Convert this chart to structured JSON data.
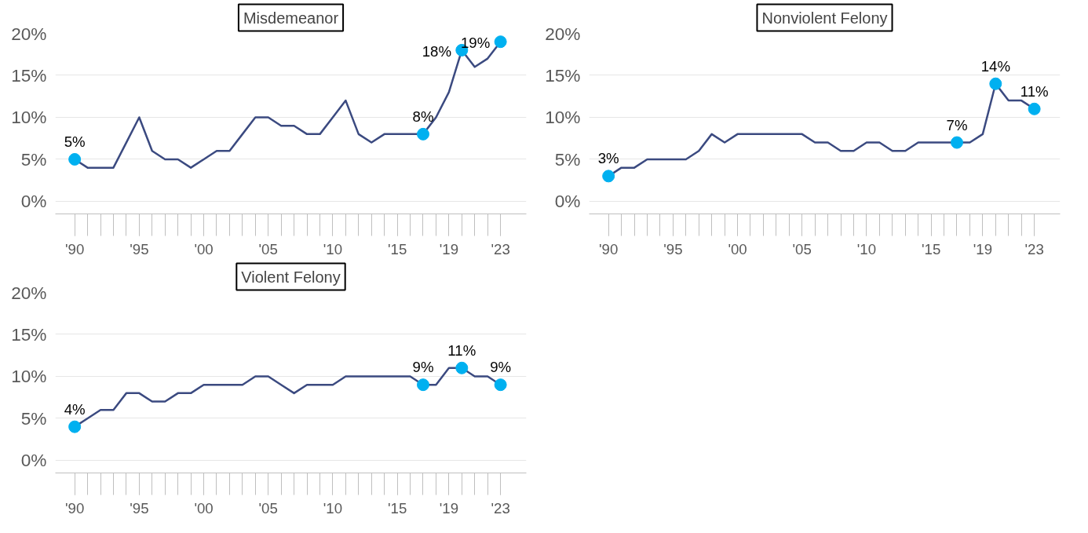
{
  "chart_data": [
    {
      "type": "line",
      "title": "Misdemeanor",
      "xlim": [
        1988.5,
        2025
      ],
      "ylim": [
        -1.5,
        20
      ],
      "xticks": [
        {
          "value": 1990,
          "label": "'90"
        },
        {
          "value": 1995,
          "label": "'95"
        },
        {
          "value": 2000,
          "label": "'00"
        },
        {
          "value": 2005,
          "label": "'05"
        },
        {
          "value": 2010,
          "label": "'10"
        },
        {
          "value": 2015,
          "label": "'15"
        },
        {
          "value": 2019,
          "label": "'19"
        },
        {
          "value": 2023,
          "label": "'23"
        }
      ],
      "yticks": [
        {
          "value": 0,
          "label": "0%"
        },
        {
          "value": 5,
          "label": "5%"
        },
        {
          "value": 10,
          "label": "10%"
        },
        {
          "value": 15,
          "label": "15%"
        },
        {
          "value": 20,
          "label": "20%"
        }
      ],
      "grid": "y",
      "series": [
        {
          "color": "#3b4a80",
          "x": [
            1990,
            1991,
            1992,
            1993,
            1994,
            1995,
            1996,
            1997,
            1998,
            1999,
            2000,
            2001,
            2002,
            2003,
            2004,
            2005,
            2006,
            2007,
            2008,
            2009,
            2010,
            2011,
            2012,
            2013,
            2014,
            2015,
            2016,
            2017,
            2018,
            2019,
            2020,
            2021,
            2022,
            2023
          ],
          "values": [
            5,
            4,
            4,
            4,
            7,
            10,
            6,
            5,
            5,
            4,
            5,
            6,
            6,
            8,
            10,
            10,
            9,
            9,
            8,
            8,
            10,
            12,
            8,
            7,
            8,
            8,
            8,
            8,
            10,
            13,
            18,
            16,
            17,
            19
          ]
        },
        {
          "type": "scatter",
          "marker": "circle",
          "color": "#00b0f0",
          "x": [
            1990,
            2017,
            2020,
            2023
          ],
          "values": [
            5,
            8,
            18,
            19
          ],
          "value_labels": [
            "5%",
            "8%",
            "18%",
            "19%"
          ]
        }
      ]
    },
    {
      "type": "line",
      "title": "Nonviolent Felony",
      "xlim": [
        1988.5,
        2025
      ],
      "ylim": [
        -1.5,
        20
      ],
      "xticks": [
        {
          "value": 1990,
          "label": "'90"
        },
        {
          "value": 1995,
          "label": "'95"
        },
        {
          "value": 2000,
          "label": "'00"
        },
        {
          "value": 2005,
          "label": "'05"
        },
        {
          "value": 2010,
          "label": "'10"
        },
        {
          "value": 2015,
          "label": "'15"
        },
        {
          "value": 2019,
          "label": "'19"
        },
        {
          "value": 2023,
          "label": "'23"
        }
      ],
      "yticks": [
        {
          "value": 0,
          "label": "0%"
        },
        {
          "value": 5,
          "label": "5%"
        },
        {
          "value": 10,
          "label": "10%"
        },
        {
          "value": 15,
          "label": "15%"
        },
        {
          "value": 20,
          "label": "20%"
        }
      ],
      "grid": "y",
      "series": [
        {
          "color": "#3b4a80",
          "x": [
            1990,
            1991,
            1992,
            1993,
            1994,
            1995,
            1996,
            1997,
            1998,
            1999,
            2000,
            2001,
            2002,
            2003,
            2004,
            2005,
            2006,
            2007,
            2008,
            2009,
            2010,
            2011,
            2012,
            2013,
            2014,
            2015,
            2016,
            2017,
            2018,
            2019,
            2020,
            2021,
            2022,
            2023
          ],
          "values": [
            3,
            4,
            4,
            5,
            5,
            5,
            5,
            6,
            8,
            7,
            8,
            8,
            8,
            8,
            8,
            8,
            7,
            7,
            6,
            6,
            7,
            7,
            6,
            6,
            7,
            7,
            7,
            7,
            7,
            8,
            14,
            12,
            12,
            11
          ]
        },
        {
          "type": "scatter",
          "marker": "circle",
          "color": "#00b0f0",
          "x": [
            1990,
            2017,
            2020,
            2023
          ],
          "values": [
            3,
            7,
            14,
            11
          ],
          "value_labels": [
            "3%",
            "7%",
            "14%",
            "11%"
          ]
        }
      ]
    },
    {
      "type": "line",
      "title": "Violent Felony",
      "xlim": [
        1988.5,
        2025
      ],
      "ylim": [
        -1.5,
        20
      ],
      "xticks": [
        {
          "value": 1990,
          "label": "'90"
        },
        {
          "value": 1995,
          "label": "'95"
        },
        {
          "value": 2000,
          "label": "'00"
        },
        {
          "value": 2005,
          "label": "'05"
        },
        {
          "value": 2010,
          "label": "'10"
        },
        {
          "value": 2015,
          "label": "'15"
        },
        {
          "value": 2019,
          "label": "'19"
        },
        {
          "value": 2023,
          "label": "'23"
        }
      ],
      "yticks": [
        {
          "value": 0,
          "label": "0%"
        },
        {
          "value": 5,
          "label": "5%"
        },
        {
          "value": 10,
          "label": "10%"
        },
        {
          "value": 15,
          "label": "15%"
        },
        {
          "value": 20,
          "label": "20%"
        }
      ],
      "grid": "y",
      "series": [
        {
          "color": "#3b4a80",
          "x": [
            1990,
            1991,
            1992,
            1993,
            1994,
            1995,
            1996,
            1997,
            1998,
            1999,
            2000,
            2001,
            2002,
            2003,
            2004,
            2005,
            2006,
            2007,
            2008,
            2009,
            2010,
            2011,
            2012,
            2013,
            2014,
            2015,
            2016,
            2017,
            2018,
            2019,
            2020,
            2021,
            2022,
            2023
          ],
          "values": [
            4,
            5,
            6,
            6,
            8,
            8,
            7,
            7,
            8,
            8,
            9,
            9,
            9,
            9,
            10,
            10,
            9,
            8,
            9,
            9,
            9,
            10,
            10,
            10,
            10,
            10,
            10,
            9,
            9,
            11,
            11,
            10,
            10,
            9
          ]
        },
        {
          "type": "scatter",
          "marker": "circle",
          "color": "#00b0f0",
          "x": [
            1990,
            2017,
            2020,
            2023
          ],
          "values": [
            4,
            9,
            11,
            9
          ],
          "value_labels": [
            "4%",
            "9%",
            "11%",
            "9%"
          ]
        }
      ]
    }
  ]
}
